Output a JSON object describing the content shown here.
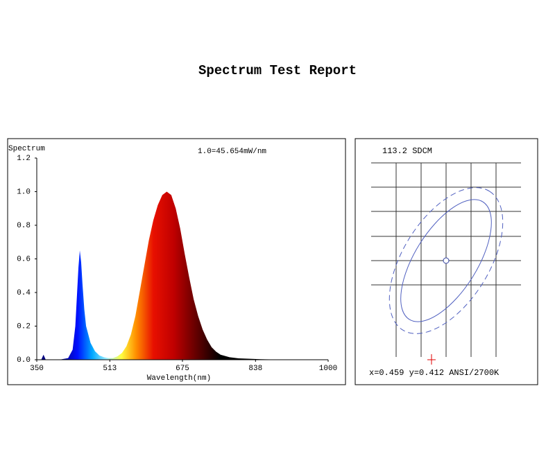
{
  "chart_data": {
    "type": "area",
    "title": "Spectrum Test Report",
    "y_label": "Spectrum",
    "annotation": "1.0=45.654mW/nm",
    "x_label": "Wavelength(nm)",
    "xlim": [
      350,
      1000
    ],
    "xticks": [
      350,
      513,
      675,
      838,
      1000
    ],
    "ylim": [
      0,
      1.2
    ],
    "yticks": [
      {
        "value": 0,
        "label": "0.0"
      },
      {
        "value": 0.2,
        "label": "0.2"
      },
      {
        "value": 0.4,
        "label": "0.4"
      },
      {
        "value": 0.6,
        "label": "0.6"
      },
      {
        "value": 0.8,
        "label": "0.8"
      },
      {
        "value": 1,
        "label": "1.0"
      },
      {
        "value": 1.2,
        "label": "1.2"
      }
    ],
    "x": [
      350,
      360,
      365,
      370,
      400,
      420,
      430,
      436,
      440,
      443,
      446,
      449,
      452,
      456,
      460,
      470,
      480,
      490,
      500,
      510,
      520,
      530,
      540,
      550,
      560,
      570,
      580,
      590,
      600,
      610,
      620,
      630,
      640,
      650,
      660,
      670,
      680,
      690,
      700,
      710,
      720,
      730,
      740,
      750,
      760,
      780,
      800,
      850,
      900,
      1000
    ],
    "values": [
      0,
      0,
      0.03,
      0,
      0,
      0.01,
      0.06,
      0.2,
      0.4,
      0.55,
      0.65,
      0.58,
      0.45,
      0.3,
      0.2,
      0.1,
      0.05,
      0.025,
      0.015,
      0.01,
      0.01,
      0.02,
      0.04,
      0.08,
      0.15,
      0.26,
      0.41,
      0.56,
      0.71,
      0.83,
      0.92,
      0.98,
      1.0,
      0.98,
      0.9,
      0.78,
      0.63,
      0.49,
      0.36,
      0.26,
      0.18,
      0.12,
      0.075,
      0.048,
      0.03,
      0.015,
      0.008,
      0.003,
      0.001,
      0
    ]
  },
  "sdcm_panel": {
    "label": "113.2 SDCM",
    "coordinates": "x=0.459 y=0.412 ANSI/2700K"
  }
}
